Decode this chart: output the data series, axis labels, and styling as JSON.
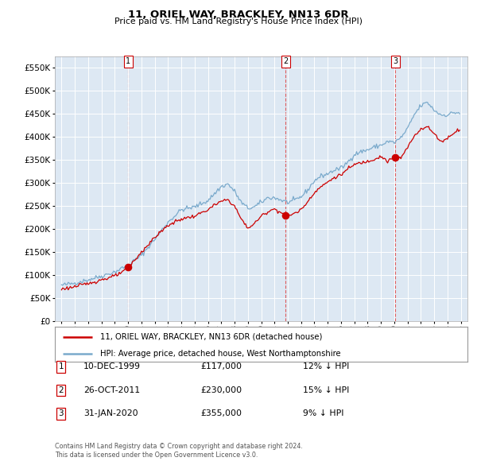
{
  "title": "11, ORIEL WAY, BRACKLEY, NN13 6DR",
  "subtitle": "Price paid vs. HM Land Registry's House Price Index (HPI)",
  "legend_line1": "11, ORIEL WAY, BRACKLEY, NN13 6DR (detached house)",
  "legend_line2": "HPI: Average price, detached house, West Northamptonshire",
  "footer1": "Contains HM Land Registry data © Crown copyright and database right 2024.",
  "footer2": "This data is licensed under the Open Government Licence v3.0.",
  "sale1_date": "10-DEC-1999",
  "sale1_price": 117000,
  "sale1_hpi": "12% ↓ HPI",
  "sale2_date": "26-OCT-2011",
  "sale2_price": 230000,
  "sale2_hpi": "15% ↓ HPI",
  "sale3_date": "31-JAN-2020",
  "sale3_price": 355000,
  "sale3_hpi": "9% ↓ HPI",
  "sale1_x": 2000.0,
  "sale2_x": 2011.83,
  "sale3_x": 2020.08,
  "ylim": [
    0,
    575000
  ],
  "yticks": [
    0,
    50000,
    100000,
    150000,
    200000,
    250000,
    300000,
    350000,
    400000,
    450000,
    500000,
    550000
  ],
  "xlim": [
    1994.5,
    2025.5
  ],
  "red_color": "#cc0000",
  "blue_color": "#7aaacc",
  "bg_color": "#dde8f3",
  "grid_color": "#ffffff",
  "dashed_color": "#dd4444"
}
